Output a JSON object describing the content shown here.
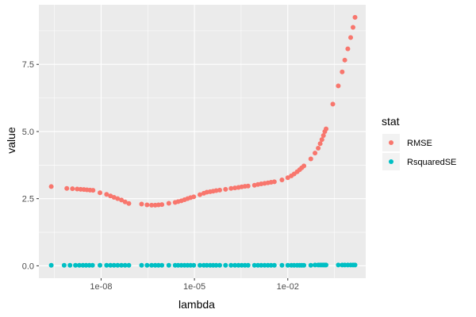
{
  "chart_data": {
    "type": "scatter",
    "xscale": "log10",
    "xlabel": "lambda",
    "ylabel": "value",
    "xlim": [
      1e-10,
      3.2
    ],
    "ylim": [
      -0.46,
      9.72
    ],
    "x_ticks": [
      {
        "value": 1e-08,
        "label": "1e-08"
      },
      {
        "value": 1e-05,
        "label": "1e-05"
      },
      {
        "value": 0.01,
        "label": "1e-02"
      }
    ],
    "y_ticks": [
      {
        "value": 0.0,
        "label": "0.0"
      },
      {
        "value": 2.5,
        "label": "2.5"
      },
      {
        "value": 5.0,
        "label": "5.0"
      },
      {
        "value": 7.5,
        "label": "7.5"
      }
    ],
    "grid": true,
    "legend": {
      "title": "stat",
      "position": "right"
    },
    "series": [
      {
        "name": "RMSE",
        "color": "#F8766D",
        "points": [
          [
            2.5e-10,
            2.95
          ],
          [
            7.9e-10,
            2.88
          ],
          [
            1.2e-09,
            2.87
          ],
          [
            1.7e-09,
            2.86
          ],
          [
            2.2e-09,
            2.85
          ],
          [
            2.8e-09,
            2.84
          ],
          [
            3.5e-09,
            2.83
          ],
          [
            4.4e-09,
            2.82
          ],
          [
            5.5e-09,
            2.81
          ],
          [
            9.2e-09,
            2.72
          ],
          [
            1.5e-08,
            2.66
          ],
          [
            2e-08,
            2.6
          ],
          [
            2.6e-08,
            2.55
          ],
          [
            3.4e-08,
            2.5
          ],
          [
            4.5e-08,
            2.45
          ],
          [
            5.9e-08,
            2.38
          ],
          [
            7.8e-08,
            2.32
          ],
          [
            2e-07,
            2.3
          ],
          [
            3e-07,
            2.27
          ],
          [
            4.2e-07,
            2.26
          ],
          [
            5.5e-07,
            2.26
          ],
          [
            7e-07,
            2.27
          ],
          [
            9e-07,
            2.28
          ],
          [
            1.5e-06,
            2.33
          ],
          [
            2.4e-06,
            2.36
          ],
          [
            3e-06,
            2.39
          ],
          [
            3.8e-06,
            2.42
          ],
          [
            4.8e-06,
            2.46
          ],
          [
            6e-06,
            2.5
          ],
          [
            7.5e-06,
            2.54
          ],
          [
            9.5e-06,
            2.57
          ],
          [
            1.5e-05,
            2.65
          ],
          [
            2e-05,
            2.7
          ],
          [
            2.5e-05,
            2.74
          ],
          [
            3.2e-05,
            2.76
          ],
          [
            4e-05,
            2.78
          ],
          [
            5e-05,
            2.8
          ],
          [
            6.5e-05,
            2.82
          ],
          [
            0.0001,
            2.85
          ],
          [
            0.00015,
            2.88
          ],
          [
            0.0002,
            2.9
          ],
          [
            0.00026,
            2.92
          ],
          [
            0.00033,
            2.94
          ],
          [
            0.00042,
            2.96
          ],
          [
            0.00053,
            2.97
          ],
          [
            0.00085,
            3.0
          ],
          [
            0.0011,
            3.03
          ],
          [
            0.0014,
            3.05
          ],
          [
            0.0018,
            3.07
          ],
          [
            0.0023,
            3.09
          ],
          [
            0.0029,
            3.11
          ],
          [
            0.0037,
            3.13
          ],
          [
            0.0065,
            3.2
          ],
          [
            0.01,
            3.28
          ],
          [
            0.013,
            3.35
          ],
          [
            0.016,
            3.42
          ],
          [
            0.02,
            3.5
          ],
          [
            0.024,
            3.58
          ],
          [
            0.028,
            3.65
          ],
          [
            0.033,
            3.72
          ],
          [
            0.055,
            3.98
          ],
          [
            0.075,
            4.2
          ],
          [
            0.095,
            4.38
          ],
          [
            0.11,
            4.55
          ],
          [
            0.125,
            4.7
          ],
          [
            0.14,
            4.85
          ],
          [
            0.155,
            5.0
          ],
          [
            0.17,
            5.1
          ],
          [
            0.28,
            6.02
          ],
          [
            0.42,
            6.7
          ],
          [
            0.56,
            7.22
          ],
          [
            0.68,
            7.66
          ],
          [
            0.85,
            8.08
          ],
          [
            1.05,
            8.5
          ],
          [
            1.25,
            8.88
          ],
          [
            1.45,
            9.25
          ]
        ]
      },
      {
        "name": "RsquaredSE",
        "color": "#00BFC4",
        "points": [
          [
            2.5e-10,
            0.02
          ],
          [
            6.5e-10,
            0.02
          ],
          [
            1e-09,
            0.02
          ],
          [
            1.5e-09,
            0.02
          ],
          [
            2e-09,
            0.02
          ],
          [
            2.6e-09,
            0.02
          ],
          [
            3.3e-09,
            0.02
          ],
          [
            4.2e-09,
            0.02
          ],
          [
            5.3e-09,
            0.02
          ],
          [
            9.2e-09,
            0.02
          ],
          [
            1.5e-08,
            0.02
          ],
          [
            2e-08,
            0.02
          ],
          [
            2.6e-08,
            0.02
          ],
          [
            3.4e-08,
            0.02
          ],
          [
            4.5e-08,
            0.02
          ],
          [
            5.9e-08,
            0.02
          ],
          [
            7.8e-08,
            0.02
          ],
          [
            2e-07,
            0.02
          ],
          [
            3e-07,
            0.02
          ],
          [
            4.2e-07,
            0.02
          ],
          [
            5.5e-07,
            0.02
          ],
          [
            7e-07,
            0.02
          ],
          [
            9e-07,
            0.02
          ],
          [
            1.5e-06,
            0.02
          ],
          [
            2.4e-06,
            0.02
          ],
          [
            3e-06,
            0.02
          ],
          [
            3.8e-06,
            0.02
          ],
          [
            4.8e-06,
            0.02
          ],
          [
            6e-06,
            0.02
          ],
          [
            7.5e-06,
            0.02
          ],
          [
            9.5e-06,
            0.02
          ],
          [
            1.5e-05,
            0.02
          ],
          [
            2e-05,
            0.02
          ],
          [
            2.5e-05,
            0.02
          ],
          [
            3.2e-05,
            0.02
          ],
          [
            4e-05,
            0.02
          ],
          [
            5e-05,
            0.02
          ],
          [
            6.5e-05,
            0.02
          ],
          [
            0.0001,
            0.02
          ],
          [
            0.00015,
            0.02
          ],
          [
            0.0002,
            0.02
          ],
          [
            0.00026,
            0.02
          ],
          [
            0.00033,
            0.02
          ],
          [
            0.00042,
            0.02
          ],
          [
            0.00053,
            0.02
          ],
          [
            0.00085,
            0.02
          ],
          [
            0.0011,
            0.02
          ],
          [
            0.0014,
            0.02
          ],
          [
            0.0018,
            0.02
          ],
          [
            0.0023,
            0.02
          ],
          [
            0.0029,
            0.02
          ],
          [
            0.0037,
            0.02
          ],
          [
            0.0065,
            0.02
          ],
          [
            0.01,
            0.02
          ],
          [
            0.013,
            0.02
          ],
          [
            0.016,
            0.02
          ],
          [
            0.02,
            0.02
          ],
          [
            0.024,
            0.02
          ],
          [
            0.028,
            0.02
          ],
          [
            0.033,
            0.02
          ],
          [
            0.055,
            0.02
          ],
          [
            0.075,
            0.03
          ],
          [
            0.095,
            0.03
          ],
          [
            0.11,
            0.03
          ],
          [
            0.125,
            0.03
          ],
          [
            0.14,
            0.03
          ],
          [
            0.155,
            0.03
          ],
          [
            0.17,
            0.03
          ],
          [
            0.42,
            0.03
          ],
          [
            0.56,
            0.03
          ],
          [
            0.68,
            0.03
          ],
          [
            0.85,
            0.03
          ],
          [
            1.05,
            0.03
          ],
          [
            1.25,
            0.03
          ],
          [
            1.45,
            0.03
          ]
        ]
      }
    ]
  }
}
